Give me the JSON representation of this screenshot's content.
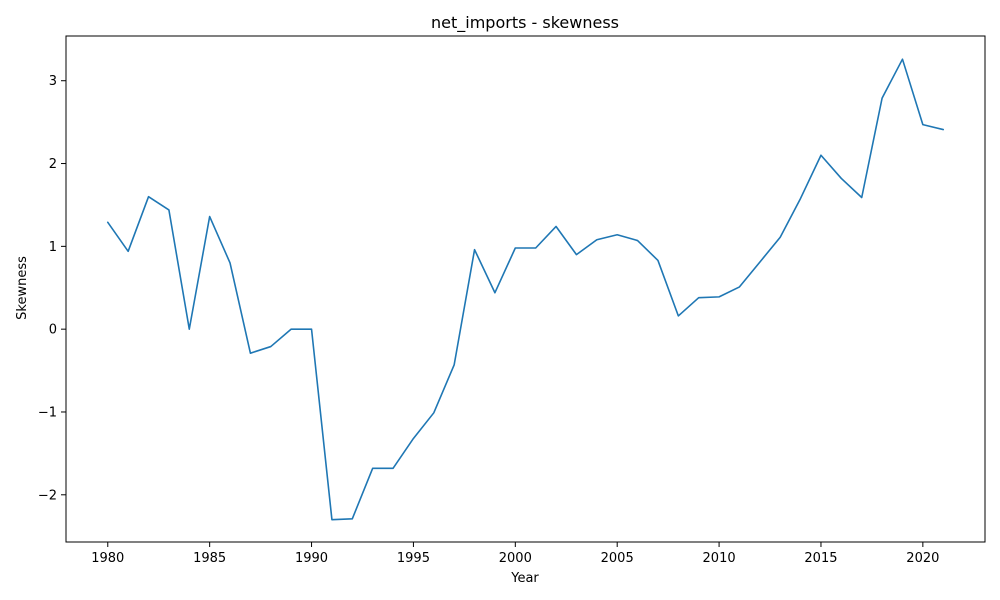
{
  "chart_data": {
    "type": "line",
    "title": "net_imports - skewness",
    "xlabel": "Year",
    "ylabel": "Skewness",
    "xlim": [
      1977.95,
      2023.05
    ],
    "ylim": [
      -2.57,
      3.54
    ],
    "xticks": [
      1980,
      1985,
      1990,
      1995,
      2000,
      2005,
      2010,
      2015,
      2020
    ],
    "yticks": [
      -2,
      -1,
      0,
      1,
      2,
      3
    ],
    "ytick_labels": [
      "−2",
      "−1",
      "0",
      "1",
      "2",
      "3"
    ],
    "grid": false,
    "legend": null,
    "series": [
      {
        "color": "#1f77b4",
        "x": [
          1980,
          1981,
          1982,
          1983,
          1984,
          1985,
          1986,
          1987,
          1988,
          1989,
          1990,
          1991,
          1992,
          1993,
          1994,
          1995,
          1996,
          1997,
          1998,
          1999,
          2000,
          2001,
          2002,
          2003,
          2004,
          2005,
          2006,
          2007,
          2008,
          2009,
          2010,
          2011,
          2012,
          2013,
          2014,
          2015,
          2016,
          2017,
          2018,
          2019,
          2020,
          2021
        ],
        "y": [
          1.29,
          0.94,
          1.6,
          1.44,
          0.0,
          1.36,
          0.8,
          -0.29,
          -0.21,
          0.0,
          0.0,
          -2.3,
          -2.29,
          -1.68,
          -1.68,
          -1.32,
          -1.01,
          -0.43,
          0.96,
          0.44,
          0.98,
          0.98,
          1.24,
          0.9,
          1.08,
          1.14,
          1.07,
          0.83,
          0.16,
          0.38,
          0.39,
          0.51,
          0.81,
          1.11,
          1.58,
          2.1,
          1.82,
          1.59,
          2.79,
          3.26,
          2.47,
          2.41
        ]
      }
    ]
  }
}
